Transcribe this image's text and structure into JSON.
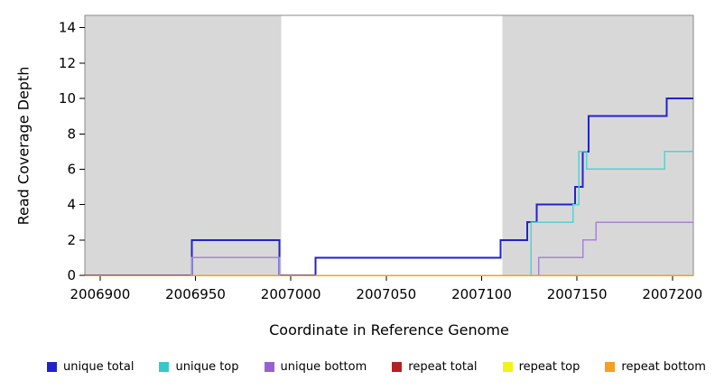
{
  "chart_data": {
    "type": "line",
    "subtype": "step-coverage",
    "title": "",
    "xlabel": "Coordinate in Reference Genome",
    "ylabel": "Read Coverage Depth",
    "xlim": [
      2006892,
      2007211
    ],
    "ylim": [
      0,
      14.7
    ],
    "xticks": [
      2006900,
      2006950,
      2007000,
      2007050,
      2007100,
      2007150,
      2007200
    ],
    "yticks": [
      0,
      2,
      4,
      6,
      8,
      10,
      12,
      14
    ],
    "grid": false,
    "legend_position": "bottom",
    "shaded_regions": [
      {
        "x0": 2006892,
        "x1": 2006995,
        "color": "#d8d8d8"
      },
      {
        "x0": 2007111,
        "x1": 2007211,
        "color": "#d8d8d8"
      }
    ],
    "series": [
      {
        "name": "unique total",
        "color": "#2222cc",
        "points": [
          [
            2006892,
            0
          ],
          [
            2006948,
            2
          ],
          [
            2006994,
            0
          ],
          [
            2007013,
            1
          ],
          [
            2007110,
            2
          ],
          [
            2007124,
            3
          ],
          [
            2007129,
            4
          ],
          [
            2007149,
            5
          ],
          [
            2007153,
            7
          ],
          [
            2007156,
            9
          ],
          [
            2007197,
            10
          ],
          [
            2007211,
            10
          ]
        ]
      },
      {
        "name": "unique top",
        "color": "#55d2d2",
        "points": [
          [
            2006892,
            0
          ],
          [
            2006948,
            1
          ],
          [
            2006994,
            0
          ],
          [
            2007126,
            3
          ],
          [
            2007148,
            4
          ],
          [
            2007151,
            7
          ],
          [
            2007155,
            6
          ],
          [
            2007196,
            7
          ],
          [
            2007211,
            7
          ]
        ]
      },
      {
        "name": "unique bottom",
        "color": "#a883d9",
        "points": [
          [
            2006892,
            0
          ],
          [
            2006948,
            1
          ],
          [
            2006994,
            0
          ],
          [
            2007130,
            1
          ],
          [
            2007153,
            2
          ],
          [
            2007160,
            3
          ],
          [
            2007211,
            3
          ]
        ]
      },
      {
        "name": "repeat total",
        "color": "#b22222",
        "points": [
          [
            2006892,
            0
          ],
          [
            2007211,
            0
          ]
        ]
      },
      {
        "name": "repeat top",
        "color": "#f2f219",
        "points": [
          [
            2006892,
            0
          ],
          [
            2007211,
            0
          ]
        ]
      },
      {
        "name": "repeat bottom",
        "color": "#f5a01e",
        "points": [
          [
            2006892,
            0
          ],
          [
            2007211,
            0
          ]
        ]
      }
    ],
    "legend": [
      {
        "label": "unique total",
        "color": "#2222cc"
      },
      {
        "label": "unique top",
        "color": "#35c9c9"
      },
      {
        "label": "unique bottom",
        "color": "#9a5fd0"
      },
      {
        "label": "repeat total",
        "color": "#b22222"
      },
      {
        "label": "repeat top",
        "color": "#f2f219"
      },
      {
        "label": "repeat bottom",
        "color": "#f5a01e"
      }
    ]
  }
}
